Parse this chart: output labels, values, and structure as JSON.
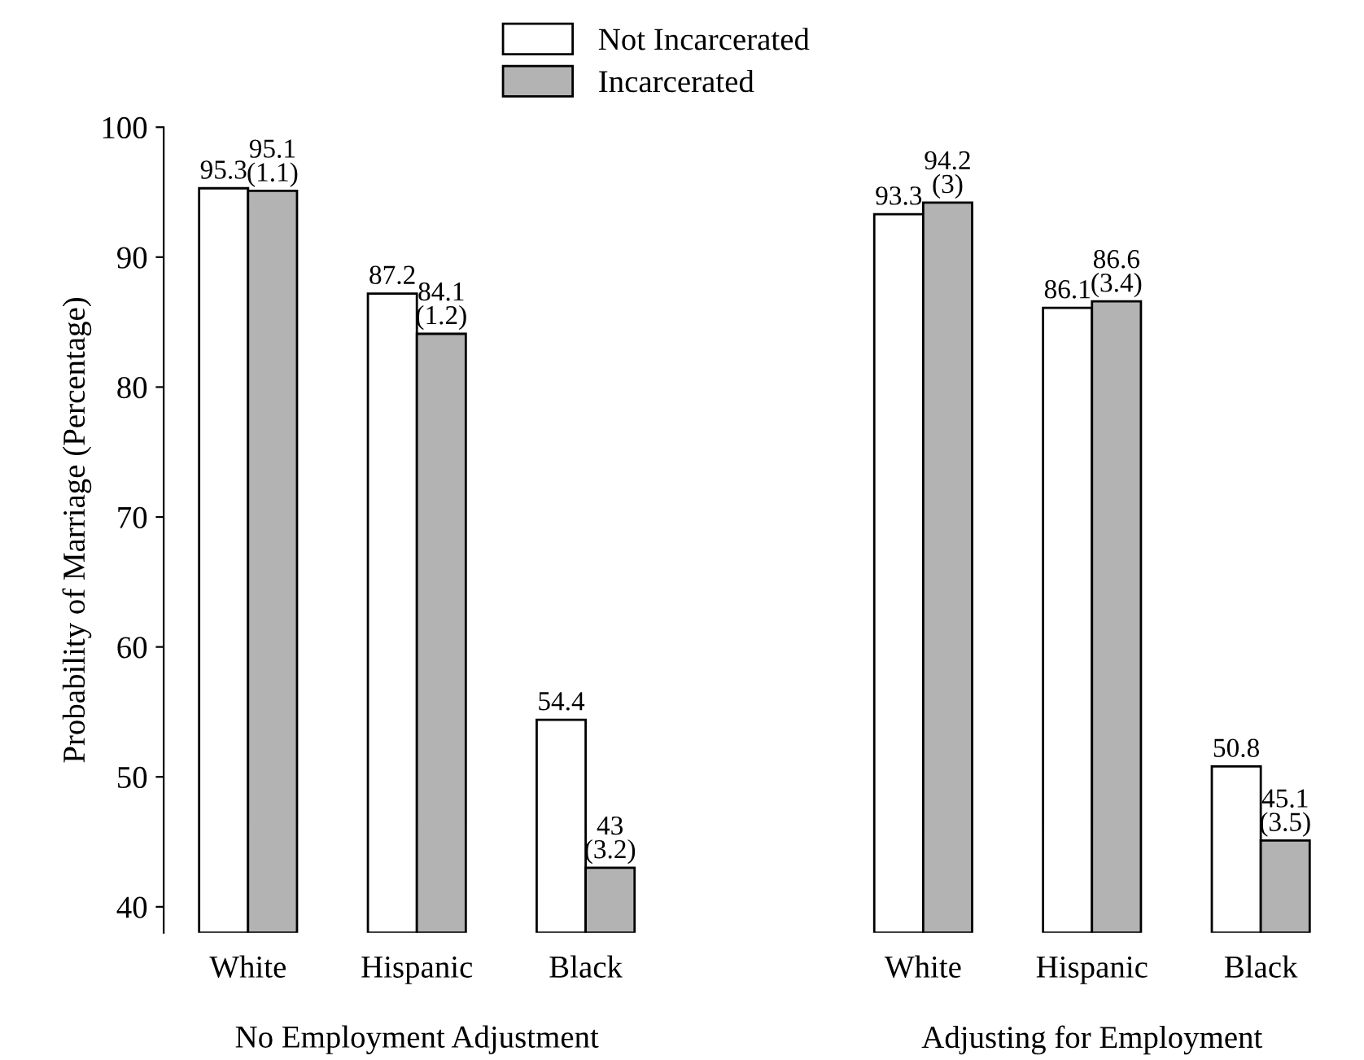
{
  "chart_data": {
    "type": "bar",
    "ylabel": "Probability of Marriage (Percentage)",
    "categories": [
      "White",
      "Hispanic",
      "Black",
      null,
      "White",
      "Hispanic",
      "Black"
    ],
    "series": [
      {
        "name": "Not Incarcerated",
        "color": "#ffffff",
        "values": [
          95.3,
          87.2,
          54.4,
          null,
          93.3,
          86.1,
          50.8
        ],
        "value_labels": [
          "95.3",
          "87.2",
          "54.4",
          null,
          "93.3",
          "86.1",
          "50.8"
        ]
      },
      {
        "name": "Incarcerated",
        "color": "#b3b3b3",
        "values": [
          95.1,
          84.1,
          43,
          null,
          94.2,
          86.6,
          45.1
        ],
        "value_labels": [
          "95.1\n(1.1)",
          "84.1\n(1.2)",
          "43\n(3.2)",
          null,
          "94.2\n(3)",
          "86.6\n(3.4)",
          "45.1\n(3.5)"
        ]
      }
    ],
    "ylim": [
      38,
      100
    ],
    "yticks": [
      40,
      50,
      60,
      70,
      80,
      90,
      100
    ],
    "grid": false,
    "legend": "top",
    "annotations": [
      "No Employment Adjustment",
      "Adjusting for Employment"
    ]
  }
}
